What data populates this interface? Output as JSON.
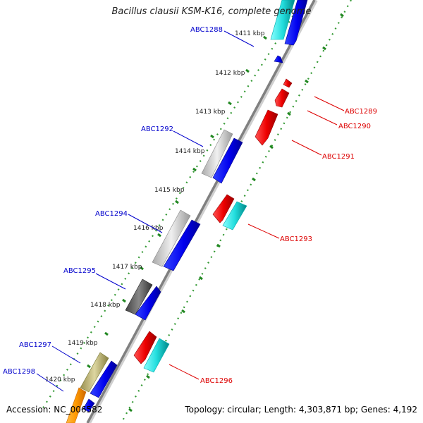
{
  "title": "Bacillus clausii KSM-K16, complete genome",
  "accession": "Accession: NC_006582",
  "summary": "Topology: circular; Length: 4,303,871 bp; Genes: 4,192",
  "colors": {
    "forward_label": "#0000cc",
    "reverse_label": "#dd0000",
    "dots": "#339933",
    "backbone": "#8a8a8a"
  },
  "kbp_ticks": [
    "1411 kbp",
    "1412 kbp",
    "1413 kbp",
    "1414 kbp",
    "1415 kbp",
    "1416 kbp",
    "1417 kbp",
    "1418 kbp",
    "1419 kbp",
    "1420 kbp"
  ],
  "genes": [
    {
      "label": "ABC1288",
      "strand": "forward",
      "color": "#33dddd"
    },
    {
      "label": "ABC1289",
      "strand": "reverse",
      "color": "#ee0000"
    },
    {
      "label": "ABC1290",
      "strand": "reverse",
      "color": "#ee0000"
    },
    {
      "label": "ABC1291",
      "strand": "reverse",
      "color": "#ee0000"
    },
    {
      "label": "ABC1292",
      "strand": "forward",
      "color": "#c0c0c0"
    },
    {
      "label": "ABC1293",
      "strand": "reverse",
      "color": "#ee0000"
    },
    {
      "label": "ABC1294",
      "strand": "forward",
      "color": "#c8c8c8"
    },
    {
      "label": "ABC1295",
      "strand": "forward",
      "color": "#555555"
    },
    {
      "label": "ABC1296",
      "strand": "reverse",
      "color": "#ee0000"
    },
    {
      "label": "ABC1297",
      "strand": "forward",
      "color": "#b8b070"
    },
    {
      "label": "ABC1298",
      "strand": "forward",
      "color": "#ff9900"
    }
  ]
}
